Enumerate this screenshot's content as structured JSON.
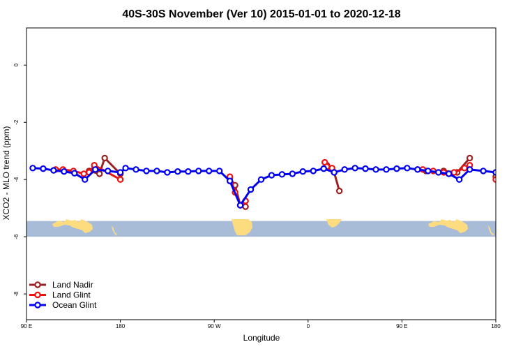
{
  "chart_data": {
    "type": "line",
    "title": "40S-30S November (Ver 10)   2015-01-01 to 2020-12-18",
    "xlabel": "Longitude",
    "ylabel": "XCO2 - MLO trend (ppm)",
    "xlim": [
      90,
      540
    ],
    "ylim": [
      -8.9,
      1.3
    ],
    "x_ticks": [
      {
        "value": 90,
        "label": "90 E"
      },
      {
        "value": 180,
        "label": "180"
      },
      {
        "value": 270,
        "label": "90 W"
      },
      {
        "value": 360,
        "label": "0"
      },
      {
        "value": 450,
        "label": "90 E"
      },
      {
        "value": 540,
        "label": "180"
      }
    ],
    "y_ticks": [
      {
        "value": 0,
        "label": "0"
      },
      {
        "value": -2,
        "label": "-2"
      },
      {
        "value": -4,
        "label": "-4"
      },
      {
        "value": -6,
        "label": "-6"
      },
      {
        "value": -8,
        "label": "-8"
      }
    ],
    "map_strip": {
      "y_top": -5.45,
      "y_bottom": -6.0,
      "ocean_color": "#a8bcd8",
      "land_color": "#fddc80"
    },
    "legend": {
      "position": "bottom-left"
    },
    "series": [
      {
        "name": "Land Nadir",
        "color": "#992222",
        "segments": [
          [
            [
              150,
              -3.7
            ],
            [
              160,
              -3.8
            ],
            [
              165,
              -3.25
            ],
            [
              180,
              -3.8
            ]
          ],
          [
            [
              285,
              -3.95
            ],
            [
              290,
              -4.2
            ],
            [
              295,
              -4.9
            ],
            [
              300,
              -4.95
            ],
            [
              300,
              -4.75
            ]
          ],
          [
            [
              378,
              -3.5
            ],
            [
              385,
              -3.75
            ],
            [
              390,
              -4.4
            ]
          ],
          [
            [
              473,
              -3.7
            ],
            [
              490,
              -3.7
            ],
            [
              503,
              -3.75
            ],
            [
              515,
              -3.25
            ]
          ],
          [
            [
              540,
              -3.9
            ]
          ]
        ]
      },
      {
        "name": "Land Glint",
        "color": "#ee1111",
        "segments": [
          [
            [
              118,
              -3.65
            ],
            [
              125,
              -3.65
            ],
            [
              135,
              -3.7
            ],
            [
              145,
              -3.8
            ],
            [
              150,
              -3.75
            ],
            [
              155,
              -3.5
            ],
            [
              180,
              -4.0
            ]
          ],
          [
            [
              285,
              -3.9
            ],
            [
              290,
              -4.45
            ],
            [
              295,
              -4.9
            ],
            [
              300,
              -4.75
            ]
          ],
          [
            [
              376,
              -3.4
            ],
            [
              378,
              -3.55
            ],
            [
              383,
              -3.6
            ]
          ],
          [
            [
              465,
              -3.65
            ],
            [
              470,
              -3.65
            ],
            [
              480,
              -3.7
            ],
            [
              490,
              -3.75
            ],
            [
              500,
              -3.75
            ],
            [
              510,
              -3.6
            ],
            [
              515,
              -3.5
            ]
          ],
          [
            [
              540,
              -4.0
            ]
          ]
        ]
      },
      {
        "name": "Ocean Glint",
        "color": "#0000ee",
        "segments": [
          [
            [
              96,
              -3.6
            ],
            [
              106,
              -3.62
            ],
            [
              116,
              -3.68
            ],
            [
              126,
              -3.72
            ],
            [
              136,
              -3.78
            ],
            [
              146,
              -4.0
            ],
            [
              156,
              -3.65
            ],
            [
              168,
              -3.7
            ],
            [
              180,
              -3.75
            ],
            [
              185,
              -3.6
            ],
            [
              195,
              -3.65
            ],
            [
              205,
              -3.7
            ],
            [
              215,
              -3.7
            ],
            [
              225,
              -3.75
            ],
            [
              235,
              -3.72
            ],
            [
              245,
              -3.72
            ],
            [
              255,
              -3.7
            ],
            [
              265,
              -3.7
            ],
            [
              275,
              -3.7
            ],
            [
              285,
              -4.05
            ],
            [
              295,
              -4.9
            ],
            [
              305,
              -4.35
            ],
            [
              315,
              -4.0
            ],
            [
              325,
              -3.85
            ],
            [
              335,
              -3.82
            ],
            [
              345,
              -3.8
            ],
            [
              355,
              -3.72
            ],
            [
              365,
              -3.7
            ],
            [
              375,
              -3.62
            ],
            [
              385,
              -3.75
            ],
            [
              395,
              -3.65
            ],
            [
              405,
              -3.6
            ],
            [
              415,
              -3.62
            ],
            [
              425,
              -3.65
            ],
            [
              435,
              -3.65
            ],
            [
              445,
              -3.62
            ],
            [
              455,
              -3.6
            ],
            [
              465,
              -3.65
            ],
            [
              475,
              -3.7
            ],
            [
              485,
              -3.75
            ],
            [
              495,
              -3.8
            ],
            [
              505,
              -4.0
            ],
            [
              515,
              -3.65
            ],
            [
              528,
              -3.7
            ],
            [
              540,
              -3.75
            ]
          ]
        ]
      }
    ]
  }
}
